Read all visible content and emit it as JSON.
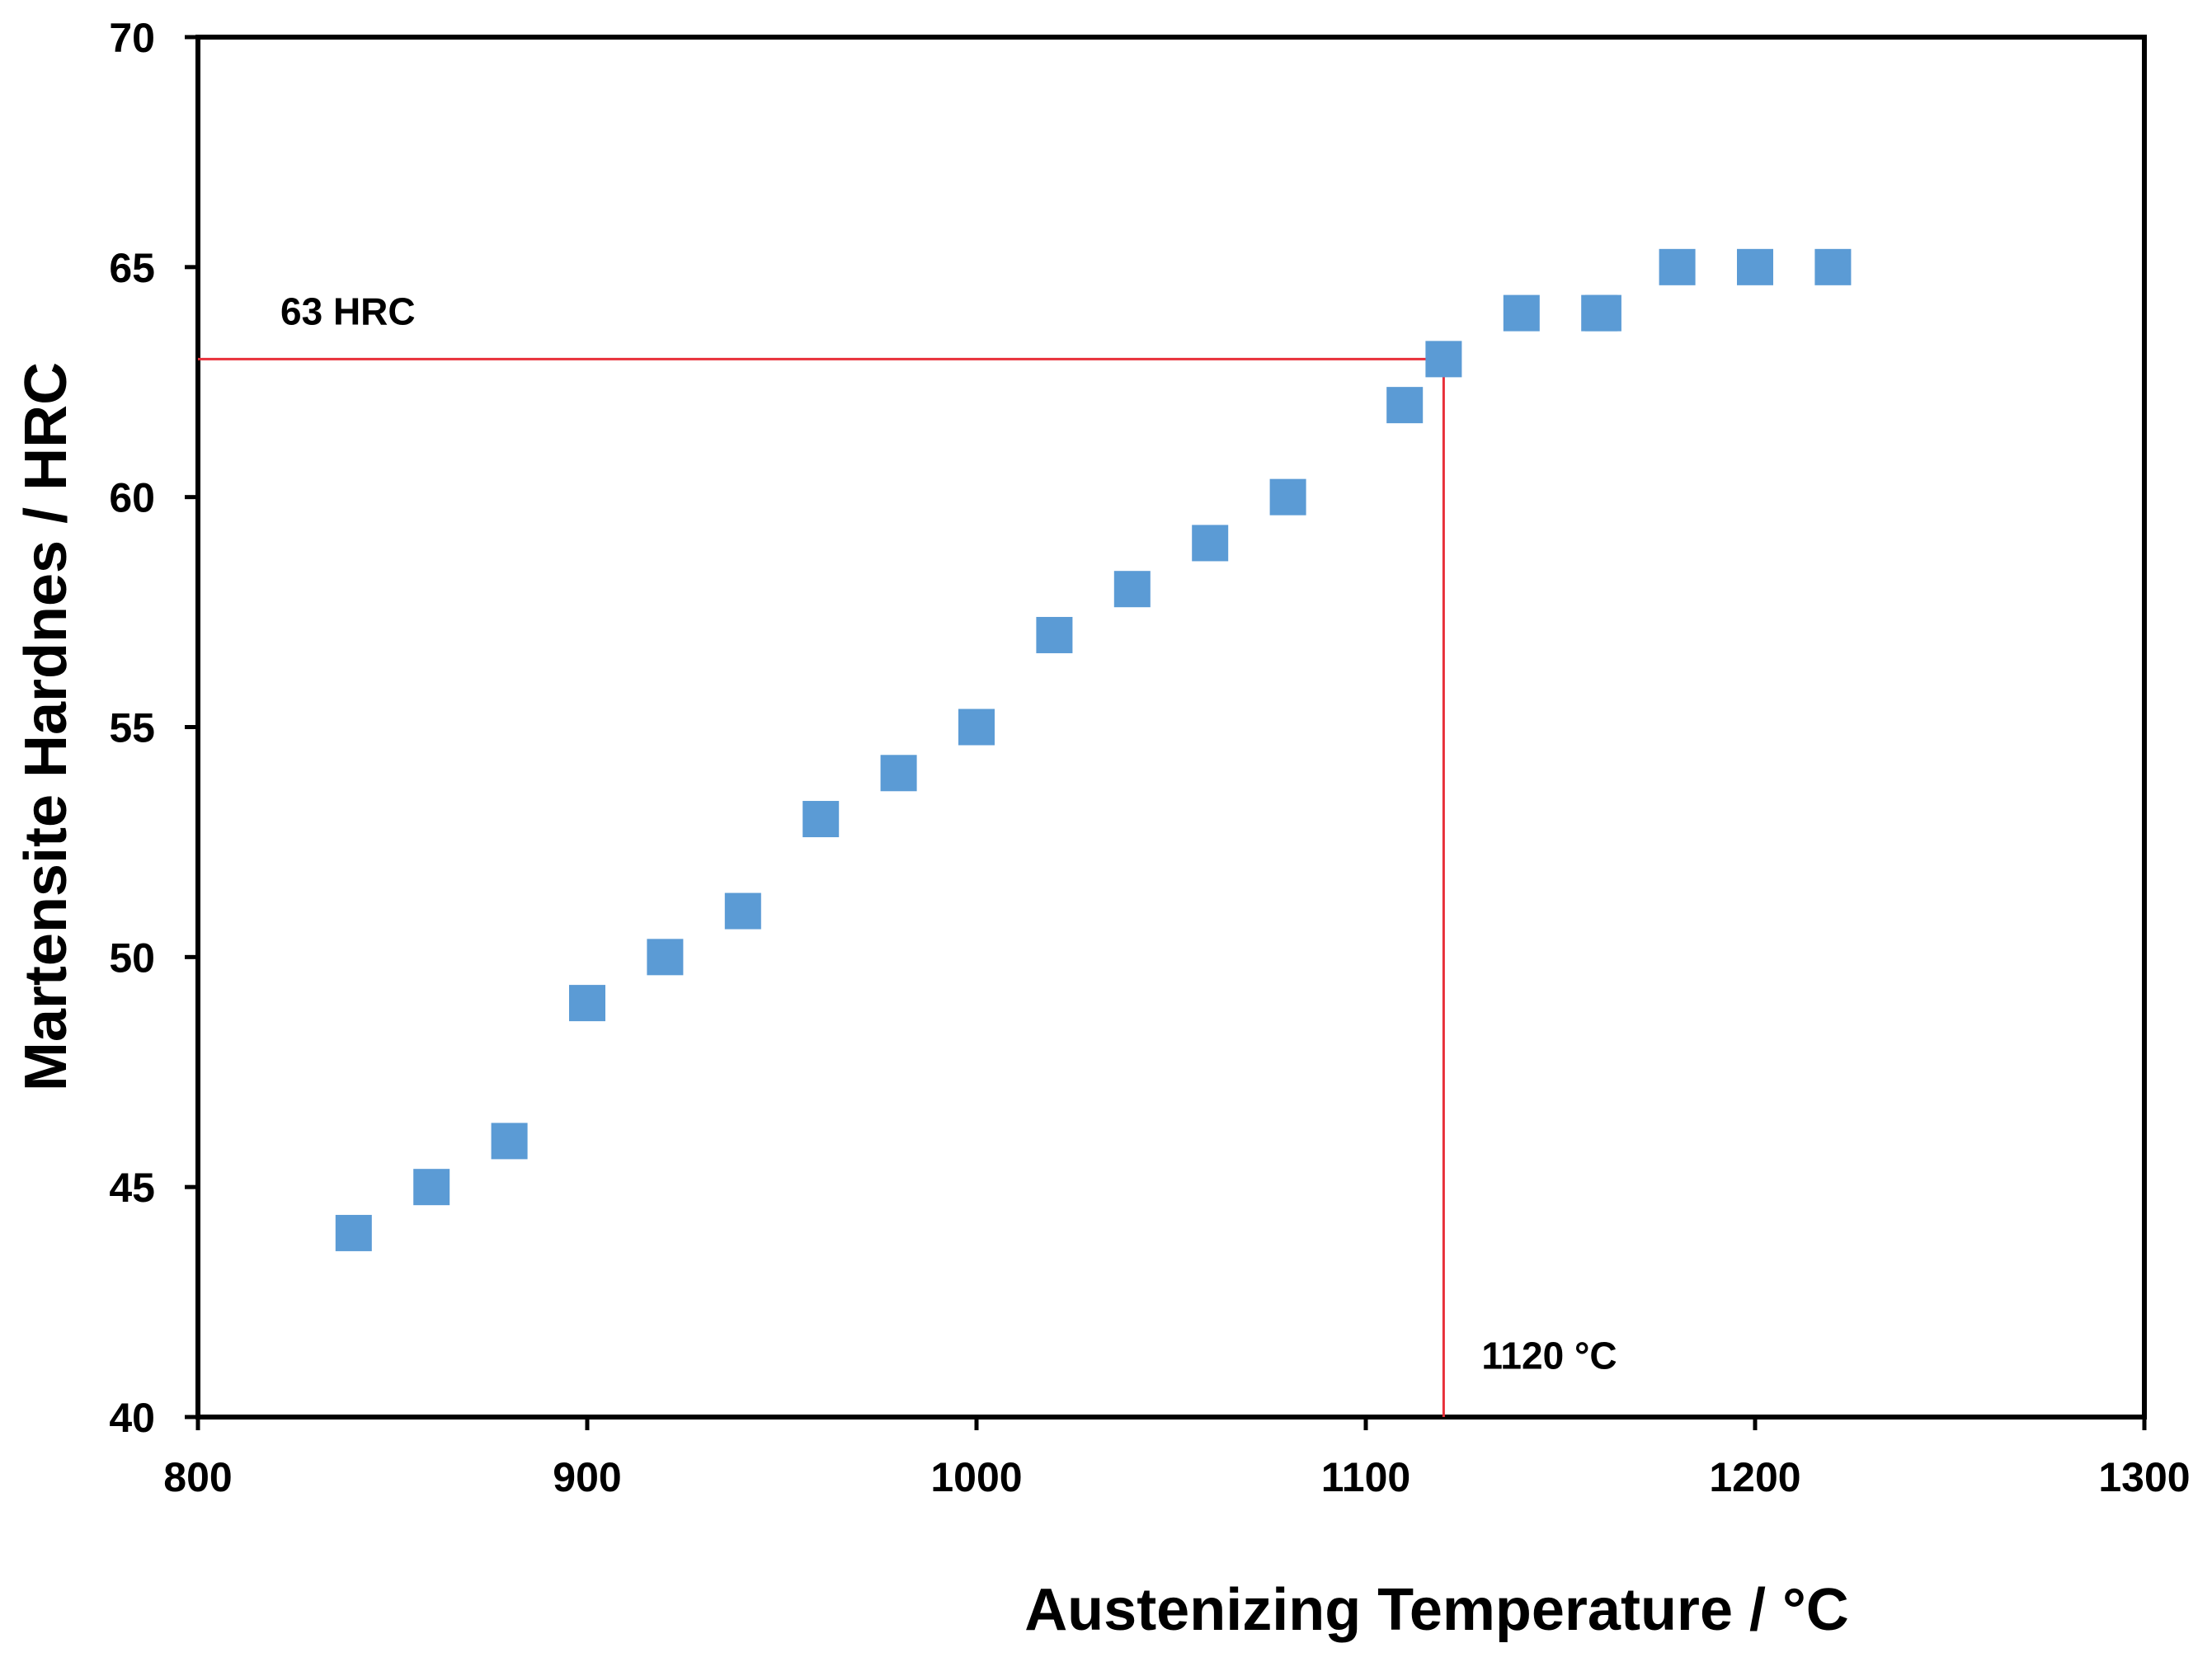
{
  "chart_data": {
    "type": "scatter",
    "title": "",
    "xlabel": "Austenizing Temperature / °C",
    "ylabel": "Martensite Hardnes  / HRC",
    "xlim": [
      800,
      1300
    ],
    "ylim": [
      40,
      70
    ],
    "xticks": [
      800,
      900,
      1000,
      1100,
      1200,
      1300
    ],
    "yticks": [
      40,
      45,
      50,
      55,
      60,
      65,
      70
    ],
    "grid": false,
    "legend": "none",
    "series": [
      {
        "name": "Martensite hardness",
        "marker": "square",
        "color": "#5b9bd5",
        "x": [
          840,
          860,
          880,
          900,
          920,
          940,
          960,
          980,
          1000,
          1020,
          1040,
          1060,
          1080,
          1110,
          1120,
          1140,
          1160,
          1161,
          1180,
          1200,
          1220
        ],
        "y": [
          44,
          45,
          46,
          49,
          50,
          51,
          53,
          54,
          55,
          57,
          58,
          59,
          60,
          62,
          63,
          64,
          64,
          64,
          65,
          65,
          65
        ]
      }
    ],
    "reference_lines": {
      "color": "#e8303a",
      "hardness_value": 63,
      "temperature_value": 1120,
      "hardness_label": "63 HRC",
      "temperature_label": "1120 °C"
    }
  }
}
